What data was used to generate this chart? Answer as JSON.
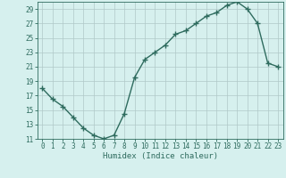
{
  "x": [
    0,
    1,
    2,
    3,
    4,
    5,
    6,
    7,
    8,
    9,
    10,
    11,
    12,
    13,
    14,
    15,
    16,
    17,
    18,
    19,
    20,
    21,
    22,
    23
  ],
  "y": [
    18,
    16.5,
    15.5,
    14,
    12.5,
    11.5,
    11,
    11.5,
    14.5,
    19.5,
    22,
    23,
    24,
    25.5,
    26,
    27,
    28,
    28.5,
    29.5,
    30,
    29,
    27,
    21.5,
    21
  ],
  "line_color": "#2e6b5e",
  "marker": "+",
  "marker_size": 4,
  "linewidth": 1.0,
  "xlabel": "Humidex (Indice chaleur)",
  "ylim": [
    11,
    30
  ],
  "yticks": [
    11,
    13,
    15,
    17,
    19,
    21,
    23,
    25,
    27,
    29
  ],
  "xticks": [
    0,
    1,
    2,
    3,
    4,
    5,
    6,
    7,
    8,
    9,
    10,
    11,
    12,
    13,
    14,
    15,
    16,
    17,
    18,
    19,
    20,
    21,
    22,
    23
  ],
  "background_color": "#d6f0ee",
  "grid_color": "#b0c8c8",
  "grid_linewidth": 0.5,
  "tick_fontsize": 5.5,
  "label_fontsize": 6.5,
  "font_color": "#2e6b5e"
}
